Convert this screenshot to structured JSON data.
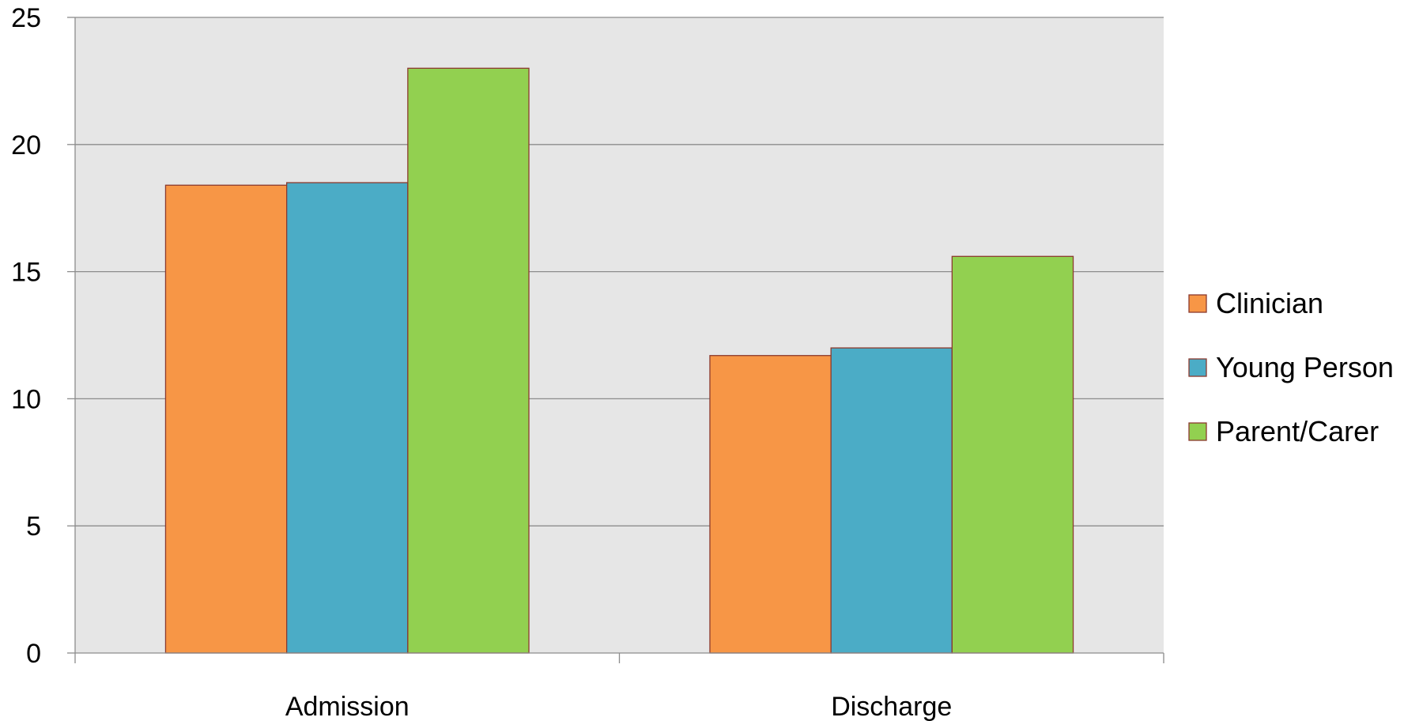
{
  "chart_data": {
    "type": "bar",
    "title": "",
    "xlabel": "",
    "ylabel": "",
    "categories": [
      "Admission",
      "Discharge"
    ],
    "series": [
      {
        "name": "Clinician",
        "values": [
          18.4,
          11.7
        ],
        "color": "#F79646"
      },
      {
        "name": "Young Person",
        "values": [
          18.5,
          12.0
        ],
        "color": "#4BACC6"
      },
      {
        "name": "Parent/Carer",
        "values": [
          23.0,
          15.6
        ],
        "color": "#92D050"
      }
    ],
    "ylim": [
      0,
      25
    ],
    "yticks": [
      "0",
      "5",
      "10",
      "15",
      "20",
      "25"
    ],
    "grid": true,
    "legend_position": "right",
    "plot_background": "#E6E6E6",
    "bar_border_color": "#8B3A2E"
  }
}
